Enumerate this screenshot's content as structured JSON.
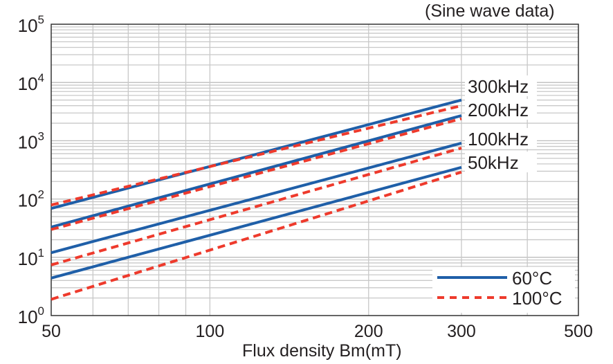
{
  "chart_data": {
    "type": "line",
    "annotation": "(Sine wave data)",
    "xlabel": "Flux density Bm(mT)",
    "ylabel": "",
    "x_scale": "log",
    "y_scale": "log",
    "xlim": [
      50,
      500
    ],
    "ylim": [
      1,
      100000
    ],
    "x_ticks": [
      50,
      100,
      200,
      300,
      500
    ],
    "x_tick_labels": [
      "50",
      "100",
      "200",
      "300",
      "500"
    ],
    "y_ticks": [
      1,
      10,
      100,
      1000,
      10000,
      100000
    ],
    "y_tick_labels": [
      [
        "10",
        "0"
      ],
      [
        "10",
        "1"
      ],
      [
        "10",
        "2"
      ],
      [
        "10",
        "3"
      ],
      [
        "10",
        "4"
      ],
      [
        "10",
        "5"
      ]
    ],
    "grid": true,
    "legend": {
      "placement": "bottom-right",
      "entries": [
        {
          "label": "60°C",
          "color": "#1f5fa8",
          "style": "solid"
        },
        {
          "label": "100°C",
          "color": "#ee3a2c",
          "style": "dashed"
        }
      ]
    },
    "frequency_labels": [
      "300kHz",
      "200kHz",
      "100kHz",
      "50kHz"
    ],
    "series": [
      {
        "frequency": "300kHz",
        "temperature": "60°C",
        "x": [
          50,
          300
        ],
        "y": [
          69,
          5000
        ]
      },
      {
        "frequency": "300kHz",
        "temperature": "100°C",
        "x": [
          50,
          300
        ],
        "y": [
          79,
          4000
        ]
      },
      {
        "frequency": "200kHz",
        "temperature": "60°C",
        "x": [
          50,
          300
        ],
        "y": [
          33,
          2700
        ]
      },
      {
        "frequency": "200kHz",
        "temperature": "100°C",
        "x": [
          50,
          300
        ],
        "y": [
          30,
          2400
        ]
      },
      {
        "frequency": "100kHz",
        "temperature": "60°C",
        "x": [
          50,
          300
        ],
        "y": [
          12,
          910
        ]
      },
      {
        "frequency": "100kHz",
        "temperature": "100°C",
        "x": [
          50,
          300
        ],
        "y": [
          7.4,
          750
        ]
      },
      {
        "frequency": "50kHz",
        "temperature": "60°C",
        "x": [
          50,
          300
        ],
        "y": [
          4.4,
          350
        ]
      },
      {
        "frequency": "50kHz",
        "temperature": "100°C",
        "x": [
          50,
          300
        ],
        "y": [
          1.9,
          290
        ]
      }
    ]
  }
}
